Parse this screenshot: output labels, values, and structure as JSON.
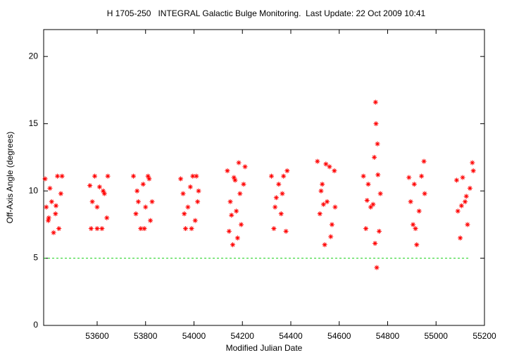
{
  "chart_data": {
    "type": "scatter",
    "title": "H 1705-250   INTEGRAL Galactic Bulge Monitoring.  Last Update: 22 Oct 2009 10:41",
    "x_label": "Modified Julian Date",
    "y_label": "Off-Axis Angle (degrees)",
    "color": "#ff0000",
    "reference_line": 5,
    "reference_color": "#00cc00",
    "xlim": [
      53379,
      55200
    ],
    "xticks": [
      53600,
      53800,
      54000,
      54200,
      54400,
      54600,
      54800,
      55000,
      55200
    ],
    "ylim": [
      0,
      22
    ],
    "yticks": [
      0,
      5,
      10,
      15,
      20
    ],
    "x": [
      53385,
      53390,
      53398,
      53405,
      53412,
      53420,
      53428,
      53436,
      53442,
      53450,
      53455,
      53400,
      53430,
      53570,
      53580,
      53590,
      53600,
      53610,
      53620,
      53630,
      53640,
      53644,
      53600,
      53625,
      53575,
      53750,
      53760,
      53770,
      53780,
      53790,
      53800,
      53810,
      53820,
      53827,
      53765,
      53795,
      53815,
      53945,
      53955,
      53965,
      53975,
      53985,
      53995,
      54005,
      54015,
      54019,
      53960,
      53990,
      54010,
      54138,
      54145,
      54150,
      54160,
      54170,
      54175,
      54185,
      54195,
      54205,
      54211,
      54155,
      54180,
      54190,
      54165,
      54320,
      54330,
      54340,
      54350,
      54360,
      54370,
      54380,
      54385,
      54335,
      54365,
      54510,
      54520,
      54530,
      54540,
      54550,
      54560,
      54570,
      54580,
      54583,
      54525,
      54545,
      54565,
      54535,
      54700,
      54710,
      54720,
      54730,
      54740,
      54745,
      54750,
      54752,
      54755,
      54758,
      54760,
      54765,
      54770,
      54715,
      54748,
      54888,
      54895,
      54905,
      54910,
      54920,
      54930,
      54940,
      54950,
      54953,
      54915,
      55085,
      55090,
      55100,
      55110,
      55120,
      55130,
      55140,
      55150,
      55154,
      55105,
      55125
    ],
    "values": [
      10.9,
      8.8,
      7.8,
      10.2,
      9.2,
      6.9,
      8.3,
      11.1,
      7.2,
      9.8,
      11.1,
      8.0,
      8.9,
      10.4,
      9.2,
      11.1,
      8.8,
      10.3,
      7.2,
      9.8,
      8.0,
      11.1,
      7.2,
      10.0,
      7.2,
      11.1,
      8.3,
      9.2,
      7.2,
      10.5,
      8.8,
      11.1,
      7.8,
      9.2,
      10.0,
      7.2,
      10.9,
      10.9,
      9.8,
      7.2,
      8.8,
      10.3,
      11.1,
      7.8,
      9.2,
      10.0,
      8.3,
      7.2,
      11.1,
      11.5,
      7.0,
      9.2,
      6.0,
      10.8,
      8.5,
      12.1,
      7.5,
      10.5,
      11.8,
      8.2,
      6.5,
      9.8,
      11.0,
      11.1,
      7.2,
      9.5,
      10.5,
      8.3,
      11.1,
      7.0,
      11.5,
      8.8,
      9.8,
      12.2,
      8.3,
      10.5,
      6.0,
      9.2,
      11.8,
      7.5,
      11.5,
      8.8,
      10.0,
      12.0,
      6.6,
      9.0,
      11.1,
      7.2,
      10.5,
      8.8,
      9.0,
      12.5,
      16.6,
      15.0,
      4.3,
      13.5,
      11.2,
      7.0,
      9.8,
      9.3,
      6.1,
      11.0,
      9.2,
      7.5,
      10.5,
      6.0,
      8.5,
      11.1,
      12.2,
      9.8,
      7.2,
      10.8,
      8.5,
      6.5,
      11.0,
      9.2,
      7.5,
      10.2,
      12.1,
      11.5,
      8.9,
      9.6
    ]
  }
}
